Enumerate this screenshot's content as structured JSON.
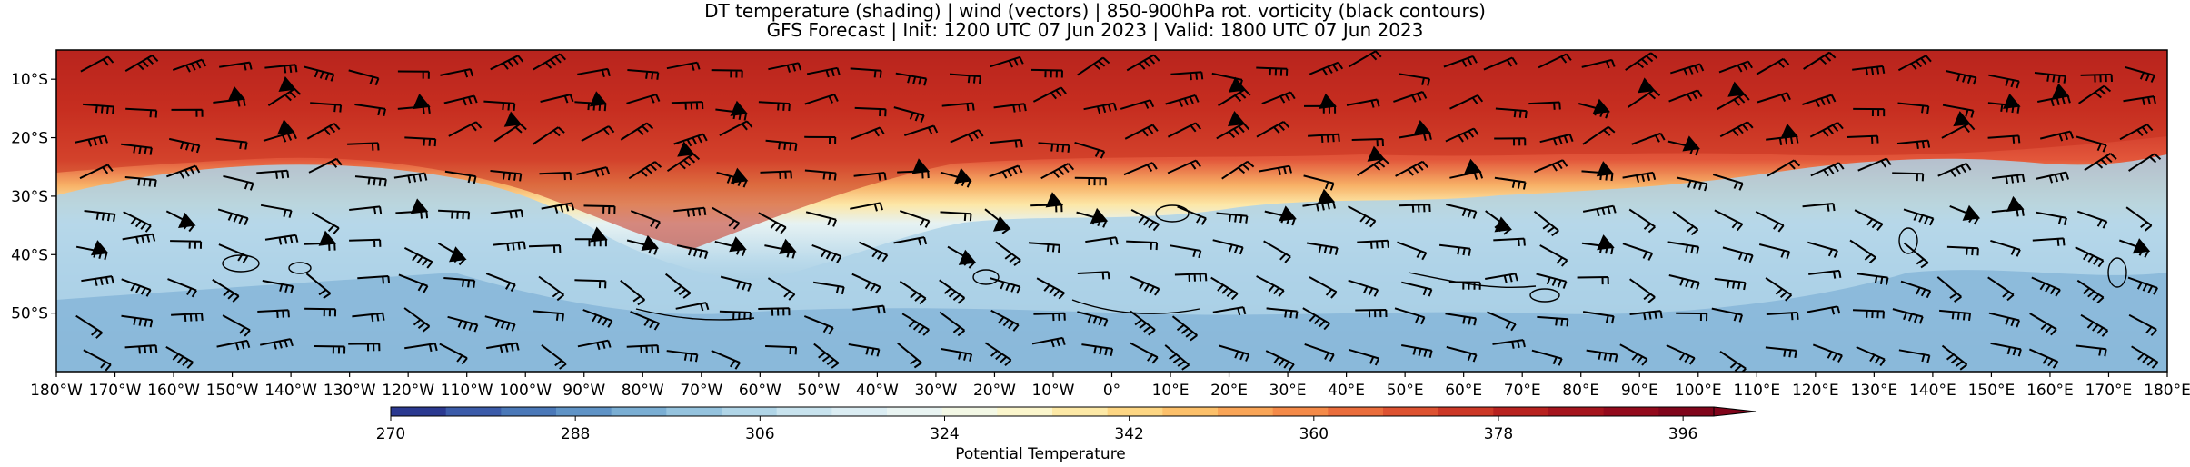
{
  "title_line1": "DT temperature (shading) | wind (vectors) | 850-900hPa rot. vorticity (black contours)",
  "title_line2": "GFS Forecast | Init: 1200 UTC 07 Jun 2023 | Valid: 1800 UTC 07 Jun 2023",
  "lat_labels": [
    "10°S",
    "20°S",
    "30°S",
    "40°S",
    "50°S"
  ],
  "lat_values": [
    -10,
    -20,
    -30,
    -40,
    -50
  ],
  "lon_labels": [
    "180°W",
    "170°W",
    "160°W",
    "150°W",
    "140°W",
    "130°W",
    "120°W",
    "110°W",
    "100°W",
    "90°W",
    "80°W",
    "70°W",
    "60°W",
    "50°W",
    "40°W",
    "30°W",
    "20°W",
    "10°W",
    "0°",
    "10°E",
    "20°E",
    "30°E",
    "40°E",
    "50°E",
    "60°E",
    "70°E",
    "80°E",
    "90°E",
    "100°E",
    "110°E",
    "120°E",
    "130°E",
    "140°E",
    "150°E",
    "160°E",
    "170°E",
    "180°E"
  ],
  "lat_range": [
    -5,
    -60
  ],
  "lon_range": [
    -180,
    180
  ],
  "colorbar": {
    "label": "Potential Temperature",
    "ticks": [
      "270",
      "288",
      "306",
      "324",
      "342",
      "360",
      "378",
      "396"
    ],
    "min": 270,
    "max": 399,
    "step": 3,
    "colors": [
      "#2b3990",
      "#3b5ba9",
      "#4a78b8",
      "#5f93c6",
      "#7aaed3",
      "#95c3de",
      "#b0d5e7",
      "#c8e3ee",
      "#dbedf3",
      "#e9f4f2",
      "#f3f8e5",
      "#fbf6cc",
      "#fde9a6",
      "#fdd683",
      "#fcc06a",
      "#f9a557",
      "#f48a48",
      "#ea6d3c",
      "#dd5231",
      "#cc3826",
      "#b8221f",
      "#a5141d",
      "#930a1c",
      "#80051b"
    ]
  },
  "colors": {
    "cold": "#8fbedd",
    "warm": "#cf3a28",
    "front": "#fbeab0"
  }
}
